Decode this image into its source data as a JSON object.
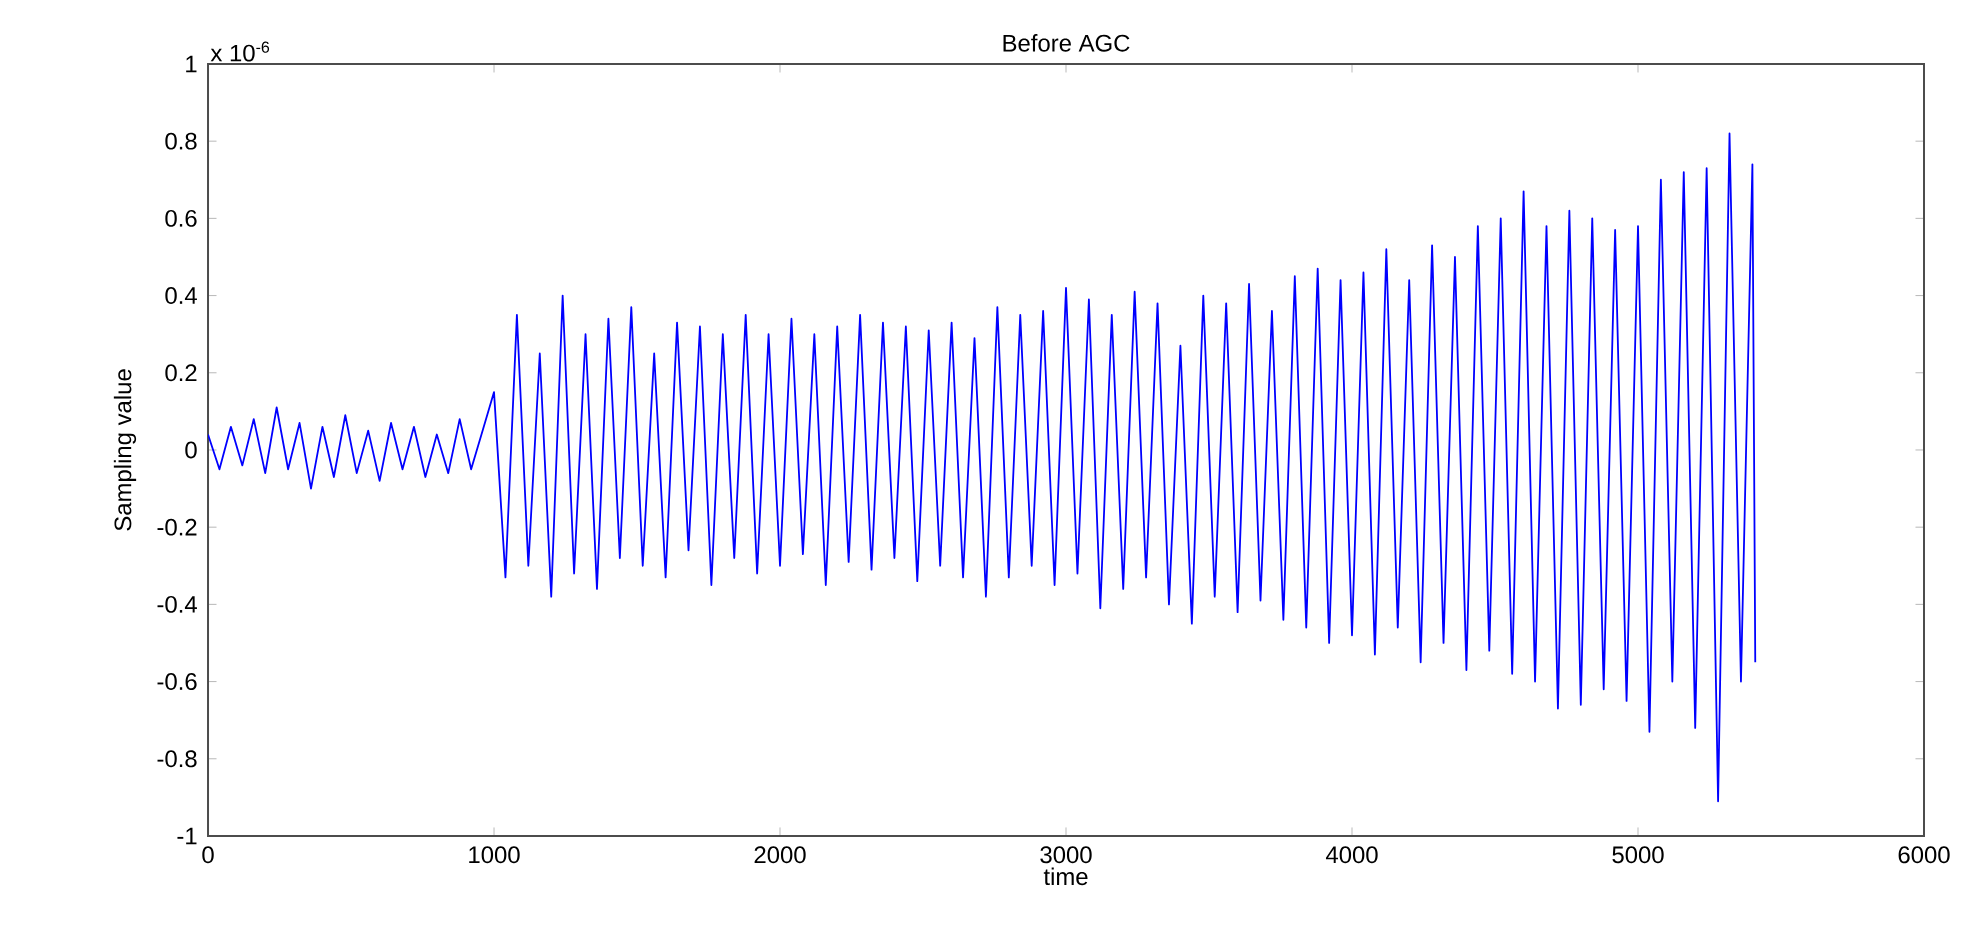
{
  "chart_data": {
    "type": "line",
    "title": "Before AGC",
    "xlabel": "time",
    "ylabel": "Sampling value",
    "annotations": [
      "x 10$^{-6}$"
    ],
    "xlim": [
      0,
      6000
    ],
    "xticks": [
      0,
      1000,
      2000,
      3000,
      4000,
      5000,
      6000
    ],
    "ylim": [
      -1,
      1
    ],
    "yticks": [
      -1,
      -0.8,
      -0.6,
      -0.4,
      -0.2,
      0,
      0.2,
      0.4,
      0.6,
      0.8,
      1
    ],
    "grid": false,
    "series": [
      {
        "color": "#0000ff",
        "line_style": "solid",
        "x": [
          0,
          40,
          80,
          120,
          160,
          200,
          240,
          280,
          320,
          360,
          400,
          440,
          480,
          520,
          560,
          600,
          640,
          680,
          720,
          760,
          800,
          840,
          880,
          920,
          960,
          1000,
          1040,
          1080,
          1120,
          1160,
          1200,
          1240,
          1280,
          1320,
          1360,
          1400,
          1440,
          1480,
          1520,
          1560,
          1600,
          1640,
          1680,
          1720,
          1760,
          1800,
          1840,
          1880,
          1920,
          1960,
          2000,
          2040,
          2080,
          2120,
          2160,
          2200,
          2240,
          2280,
          2320,
          2360,
          2400,
          2440,
          2480,
          2520,
          2560,
          2600,
          2640,
          2680,
          2720,
          2760,
          2800,
          2840,
          2880,
          2920,
          2960,
          3000,
          3040,
          3080,
          3120,
          3160,
          3200,
          3240,
          3280,
          3320,
          3360,
          3400,
          3440,
          3480,
          3520,
          3560,
          3600,
          3640,
          3680,
          3720,
          3760,
          3800,
          3840,
          3880,
          3920,
          3960,
          4000,
          4040,
          4080,
          4120,
          4160,
          4200,
          4240,
          4280,
          4320,
          4360,
          4400,
          4440,
          4480,
          4520,
          4560,
          4600,
          4640,
          4680,
          4720,
          4760,
          4800,
          4840,
          4880,
          4920,
          4960,
          5000,
          5040,
          5080,
          5120,
          5160,
          5200,
          5240,
          5280,
          5320,
          5360,
          5400,
          5410
        ],
        "values": [
          0.04,
          -0.05,
          0.06,
          -0.04,
          0.08,
          -0.06,
          0.11,
          -0.05,
          0.07,
          -0.1,
          0.06,
          -0.07,
          0.09,
          -0.06,
          0.05,
          -0.08,
          0.07,
          -0.05,
          0.06,
          -0.07,
          0.04,
          -0.06,
          0.08,
          -0.05,
          0.05,
          0.15,
          -0.33,
          0.35,
          -0.3,
          0.25,
          -0.38,
          0.4,
          -0.32,
          0.3,
          -0.36,
          0.34,
          -0.28,
          0.37,
          -0.3,
          0.25,
          -0.33,
          0.33,
          -0.26,
          0.32,
          -0.35,
          0.3,
          -0.28,
          0.35,
          -0.32,
          0.3,
          -0.3,
          0.34,
          -0.27,
          0.3,
          -0.35,
          0.32,
          -0.29,
          0.35,
          -0.31,
          0.33,
          -0.28,
          0.32,
          -0.34,
          0.31,
          -0.3,
          0.33,
          -0.33,
          0.29,
          -0.38,
          0.37,
          -0.33,
          0.35,
          -0.3,
          0.36,
          -0.35,
          0.42,
          -0.32,
          0.39,
          -0.41,
          0.35,
          -0.36,
          0.41,
          -0.33,
          0.38,
          -0.4,
          0.27,
          -0.45,
          0.4,
          -0.38,
          0.38,
          -0.42,
          0.43,
          -0.39,
          0.36,
          -0.44,
          0.45,
          -0.46,
          0.47,
          -0.5,
          0.44,
          -0.48,
          0.46,
          -0.53,
          0.52,
          -0.46,
          0.44,
          -0.55,
          0.53,
          -0.5,
          0.5,
          -0.57,
          0.58,
          -0.52,
          0.6,
          -0.58,
          0.67,
          -0.6,
          0.58,
          -0.67,
          0.62,
          -0.66,
          0.6,
          -0.62,
          0.57,
          -0.65,
          0.58,
          -0.73,
          0.7,
          -0.6,
          0.72,
          -0.72,
          0.73,
          -0.91,
          0.82,
          -0.6,
          0.74,
          -0.55
        ]
      }
    ]
  }
}
